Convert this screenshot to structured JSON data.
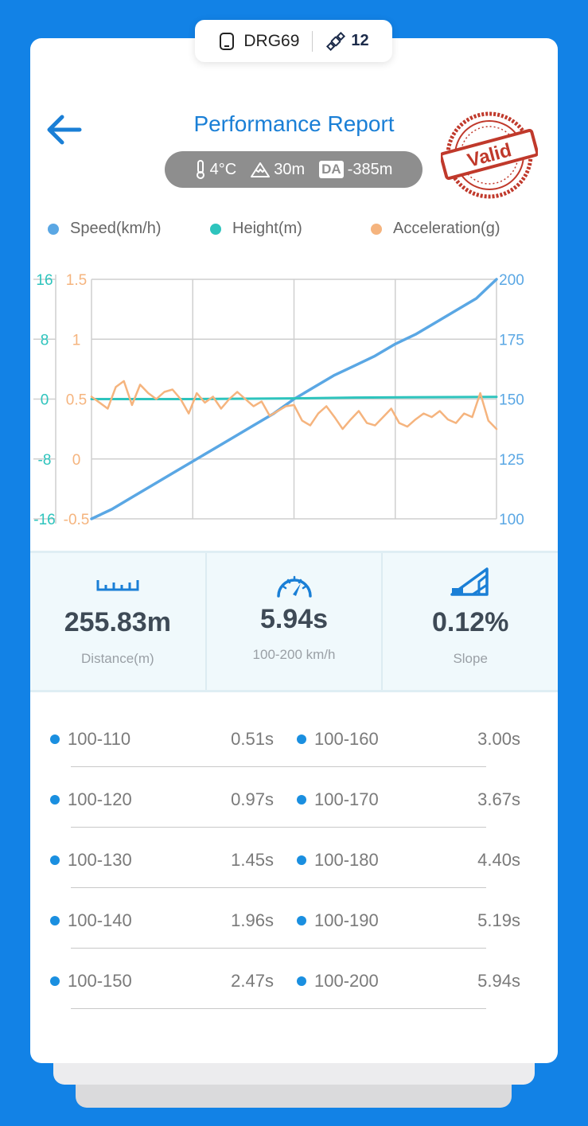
{
  "device": {
    "name": "DRG69",
    "satellites": "12"
  },
  "header": {
    "title": "Performance Report",
    "stamp_text": "Valid"
  },
  "conditions": {
    "temperature": "4°C",
    "altitude": "30m",
    "da_label": "DA",
    "da_value": "-385m"
  },
  "colors": {
    "speed": "#5aa7e4",
    "height": "#2ec4bd",
    "acceleration": "#f5b47e",
    "accent": "#1a7fd6",
    "stamp": "#c0392b"
  },
  "chart_data": {
    "type": "line",
    "series": [
      {
        "name": "Speed(km/h)",
        "axis": "right",
        "x": [
          0,
          0.05,
          0.1,
          0.15,
          0.2,
          0.25,
          0.3,
          0.35,
          0.4,
          0.45,
          0.5,
          0.55,
          0.6,
          0.65,
          0.7,
          0.75,
          0.8,
          0.85,
          0.9,
          0.95,
          1
        ],
        "y": [
          100,
          104,
          109,
          114,
          119,
          124,
          129,
          134,
          139,
          144,
          150,
          155,
          160,
          164,
          168,
          173,
          177,
          182,
          187,
          192,
          200
        ]
      },
      {
        "name": "Height(m)",
        "axis": "left_outer",
        "x": [
          0,
          0.25,
          0.5,
          0.65,
          1
        ],
        "y": [
          0,
          0,
          0.1,
          0.2,
          0.3
        ]
      },
      {
        "name": "Acceleration(g)",
        "axis": "left_inner",
        "x": [
          0,
          0.02,
          0.04,
          0.06,
          0.08,
          0.1,
          0.12,
          0.14,
          0.16,
          0.18,
          0.2,
          0.22,
          0.24,
          0.26,
          0.28,
          0.3,
          0.32,
          0.34,
          0.36,
          0.38,
          0.4,
          0.42,
          0.44,
          0.46,
          0.48,
          0.5,
          0.52,
          0.54,
          0.56,
          0.58,
          0.6,
          0.62,
          0.64,
          0.66,
          0.68,
          0.7,
          0.72,
          0.74,
          0.76,
          0.78,
          0.8,
          0.82,
          0.84,
          0.86,
          0.88,
          0.9,
          0.92,
          0.94,
          0.96,
          0.98,
          1
        ],
        "y": [
          0.52,
          0.47,
          0.42,
          0.6,
          0.65,
          0.45,
          0.62,
          0.55,
          0.5,
          0.56,
          0.58,
          0.5,
          0.38,
          0.55,
          0.47,
          0.52,
          0.42,
          0.5,
          0.56,
          0.5,
          0.44,
          0.48,
          0.36,
          0.4,
          0.44,
          0.45,
          0.32,
          0.28,
          0.38,
          0.44,
          0.35,
          0.25,
          0.33,
          0.4,
          0.3,
          0.28,
          0.35,
          0.42,
          0.3,
          0.27,
          0.33,
          0.38,
          0.35,
          0.4,
          0.33,
          0.3,
          0.38,
          0.35,
          0.55,
          0.32,
          0.25
        ]
      }
    ],
    "axes": {
      "left_outer": {
        "range": [
          -16,
          16
        ],
        "ticks": [
          "16",
          "8",
          "0",
          "-8",
          "-16"
        ]
      },
      "left_inner": {
        "range": [
          -0.5,
          1.5
        ],
        "ticks": [
          "1.5",
          "1",
          "0.5",
          "0",
          "-0.5"
        ]
      },
      "right": {
        "range": [
          100,
          200
        ],
        "ticks": [
          "200",
          "175",
          "150",
          "125",
          "100"
        ]
      }
    },
    "grid": true,
    "legend": "top"
  },
  "stats": [
    {
      "value": "255.83m",
      "label": "Distance(m)",
      "icon": "ruler-icon"
    },
    {
      "value": "5.94s",
      "label": "100-200 km/h",
      "icon": "speedometer-icon"
    },
    {
      "value": "0.12%",
      "label": "Slope",
      "icon": "slope-icon"
    }
  ],
  "splits": [
    {
      "left_range": "100-110",
      "left_time": "0.51s",
      "right_range": "100-160",
      "right_time": "3.00s"
    },
    {
      "left_range": "100-120",
      "left_time": "0.97s",
      "right_range": "100-170",
      "right_time": "3.67s"
    },
    {
      "left_range": "100-130",
      "left_time": "1.45s",
      "right_range": "100-180",
      "right_time": "4.40s"
    },
    {
      "left_range": "100-140",
      "left_time": "1.96s",
      "right_range": "100-190",
      "right_time": "5.19s"
    },
    {
      "left_range": "100-150",
      "left_time": "2.47s",
      "right_range": "100-200",
      "right_time": "5.94s"
    }
  ]
}
